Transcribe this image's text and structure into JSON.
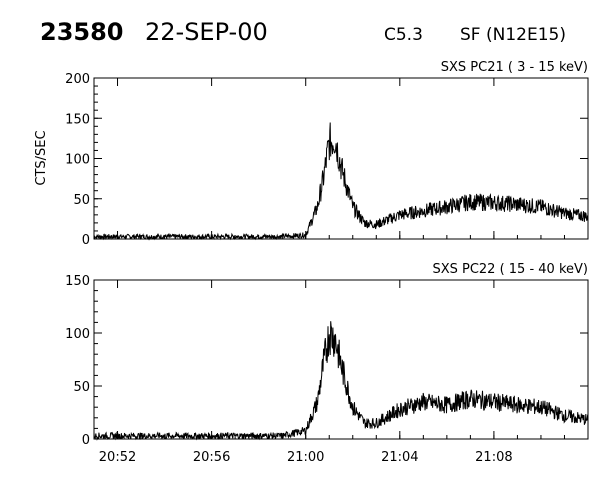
{
  "header": {
    "event_id": "23580",
    "date": "22-SEP-00",
    "flare_class": "C5.3",
    "location": "SF (N12E15)"
  },
  "chart_data": [
    {
      "type": "line",
      "subtitle": "SXS PC21  (  3 - 15 keV)",
      "ylabel": "CTS/SEC",
      "xlim": [
        "20:51",
        "21:12"
      ],
      "ylim": [
        0,
        200
      ],
      "yticks": [
        0,
        50,
        100,
        150,
        200
      ],
      "xticks": [
        "20:52",
        "20:56",
        "21:00",
        "21:04",
        "21:08"
      ],
      "grid": false,
      "series": [
        {
          "x": [
            "20:51",
            "20:53",
            "20:55",
            "20:57",
            "20:59",
            "21:00",
            "21:00:30",
            "21:00:45",
            "21:01",
            "21:01:15",
            "21:01:30",
            "21:02",
            "21:02:30",
            "21:03",
            "21:04",
            "21:05",
            "21:06",
            "21:07",
            "21:08",
            "21:09",
            "21:10",
            "21:11",
            "21:12"
          ],
          "y": [
            3,
            3,
            3,
            3,
            3,
            5,
            40,
            75,
            120,
            125,
            90,
            40,
            20,
            18,
            30,
            35,
            40,
            46,
            45,
            43,
            40,
            32,
            28
          ]
        }
      ]
    },
    {
      "type": "line",
      "subtitle": "SXS PC22  ( 15 - 40 keV)",
      "ylabel": "",
      "xlim": [
        "20:51",
        "21:12"
      ],
      "ylim": [
        0,
        150
      ],
      "yticks": [
        0,
        50,
        100,
        150
      ],
      "xticks": [
        "20:52",
        "20:56",
        "21:00",
        "21:04",
        "21:08"
      ],
      "xticklabels": [
        "20:52",
        "20:56",
        "21:00",
        "21:04",
        "21:08"
      ],
      "grid": false,
      "series": [
        {
          "x": [
            "20:51",
            "20:53",
            "20:55",
            "20:57",
            "20:59",
            "21:00",
            "21:00:30",
            "21:00:45",
            "21:01",
            "21:01:15",
            "21:01:30",
            "21:02",
            "21:02:30",
            "21:03",
            "21:04",
            "21:05",
            "21:06",
            "21:07",
            "21:08",
            "21:09",
            "21:10",
            "21:11",
            "21:12"
          ],
          "y": [
            3,
            3,
            3,
            3,
            3,
            8,
            35,
            70,
            100,
            95,
            70,
            30,
            15,
            15,
            28,
            35,
            32,
            38,
            35,
            32,
            30,
            22,
            18
          ]
        }
      ]
    }
  ]
}
